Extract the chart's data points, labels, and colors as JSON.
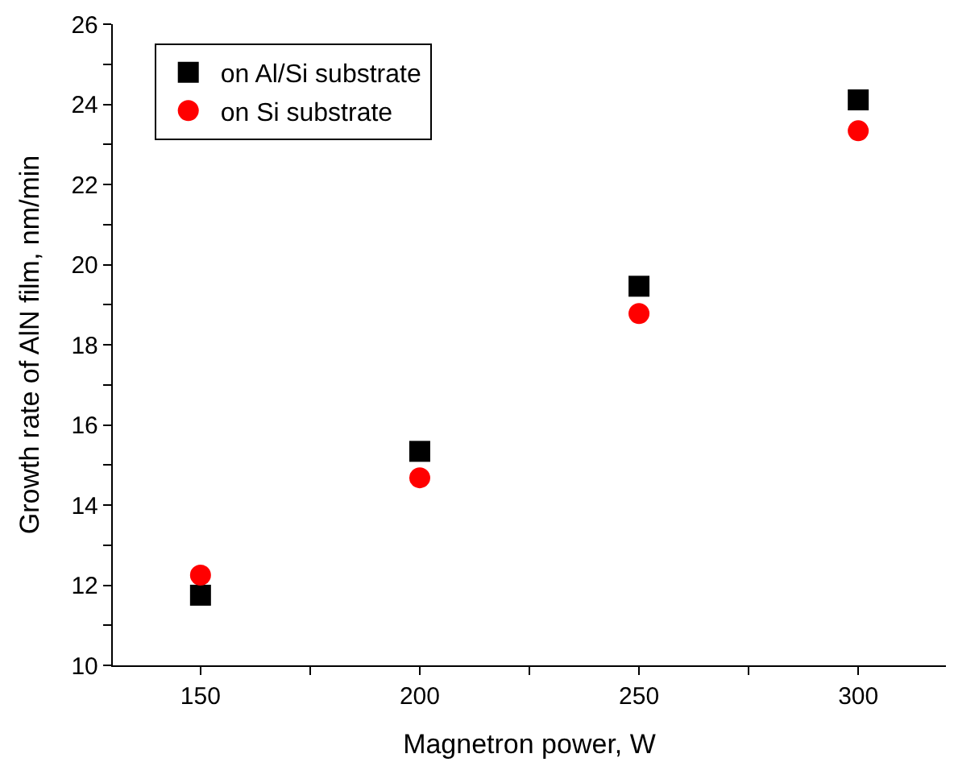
{
  "chart_data": {
    "type": "scatter",
    "xlabel": "Magnetron power, W",
    "ylabel": "Growth rate of AlN film, nm/min",
    "x": [
      150,
      200,
      250,
      300
    ],
    "series": [
      {
        "name": "on Al/Si substrate",
        "color": "#000000",
        "marker": "square",
        "values": [
          11.75,
          15.34,
          19.46,
          24.11
        ]
      },
      {
        "name": "on Si substrate",
        "color": "#ff0000",
        "marker": "circle",
        "values": [
          12.25,
          14.68,
          18.78,
          23.34
        ]
      }
    ],
    "xlim": [
      130,
      320
    ],
    "xticks": [
      150,
      {
        "value": 175,
        "label": null
      },
      200,
      {
        "value": 225,
        "label": null
      },
      250,
      {
        "value": 275,
        "label": null
      },
      300
    ],
    "ylim": [
      10,
      26
    ],
    "yticks": [
      10,
      {
        "value": 11,
        "label": null
      },
      12,
      {
        "value": 13,
        "label": null
      },
      14,
      {
        "value": 15,
        "label": null
      },
      16,
      {
        "value": 17,
        "label": null
      },
      18,
      {
        "value": 19,
        "label": null
      },
      20,
      {
        "value": 21,
        "label": null
      },
      22,
      {
        "value": 23,
        "label": null
      },
      24,
      {
        "value": 25,
        "label": null
      },
      26
    ],
    "legend": "top left"
  }
}
